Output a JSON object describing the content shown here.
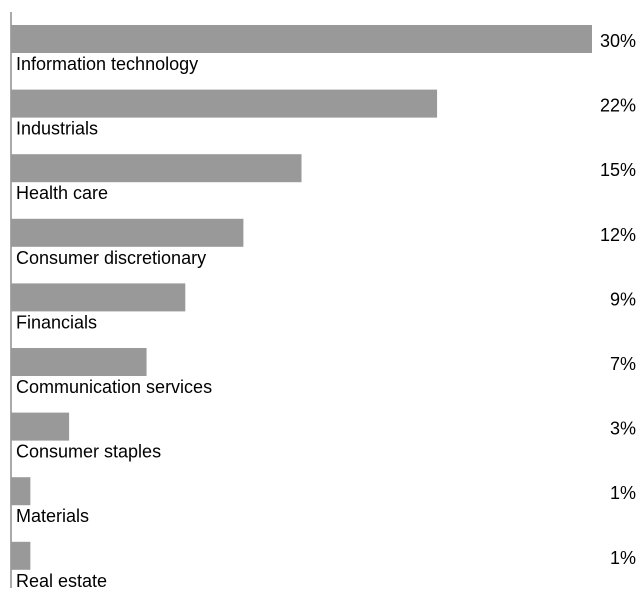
{
  "chart_data": {
    "type": "bar",
    "orientation": "horizontal",
    "categories": [
      "Information technology",
      "Industrials",
      "Health care",
      "Consumer discretionary",
      "Financials",
      "Communication services",
      "Consumer staples",
      "Materials",
      "Real estate"
    ],
    "values": [
      30,
      22,
      15,
      12,
      9,
      7,
      3,
      1,
      1
    ],
    "value_labels": [
      "30%",
      "22%",
      "15%",
      "12%",
      "9%",
      "7%",
      "3%",
      "1%",
      "1%"
    ],
    "unit": "%",
    "title": "",
    "xlabel": "",
    "ylabel": "",
    "xlim": [
      0,
      30
    ],
    "grid": false,
    "legend": "none",
    "colors": {
      "bar": "#999999",
      "axis": "#555555",
      "text": "#000000"
    }
  }
}
